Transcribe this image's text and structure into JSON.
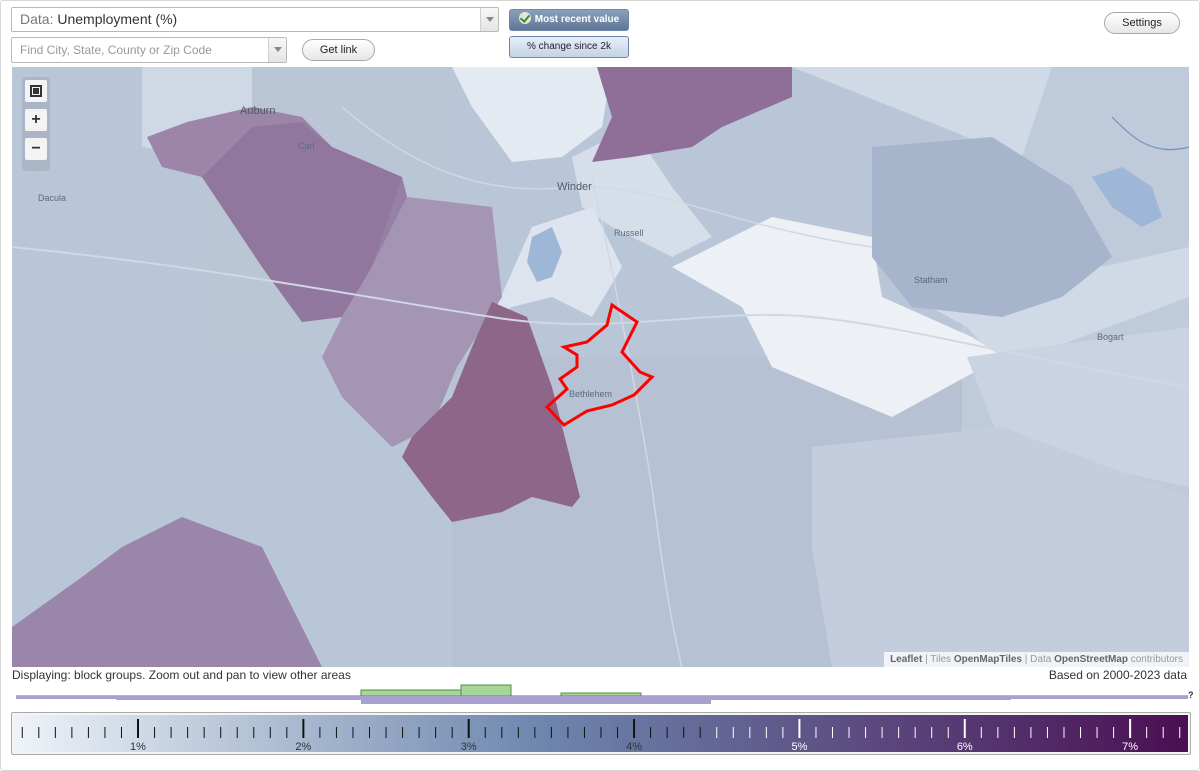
{
  "header": {
    "data_prefix": "Data:",
    "data_value": "Unemployment (%)",
    "search_placeholder": "Find City, State, County or Zip Code",
    "get_link_label": "Get link",
    "settings_label": "Settings",
    "toggle_recent_label": "Most recent value",
    "toggle_change_label": "% change since 2k"
  },
  "map": {
    "places": [
      {
        "name": "Auburn",
        "big": true
      },
      {
        "name": "Carl",
        "big": false
      },
      {
        "name": "Dacula",
        "big": false
      },
      {
        "name": "Winder",
        "big": true
      },
      {
        "name": "Russell",
        "big": false
      },
      {
        "name": "Statham",
        "big": false
      },
      {
        "name": "Bogart",
        "big": false
      },
      {
        "name": "Bethlehem",
        "big": false
      }
    ],
    "colors": {
      "selection_outline": "#ff0000",
      "region_base": "#b9c6d8",
      "region_purple": "#8a6b93",
      "region_magenta": "#9b6a8d",
      "region_light": "#dde4ee"
    },
    "attribution": {
      "leaflet": "Leaflet",
      "tiles_prefix": "Tiles",
      "tiles": "OpenMapTiles",
      "data_prefix": "Data",
      "data": "OpenStreetMap",
      "suffix": "contributors"
    },
    "zoom_icons": [
      "fullscreen-icon",
      "zoom-in-icon",
      "zoom-out-icon"
    ]
  },
  "footer": {
    "display_text": "Displaying: block groups. Zoom out and pan to view other areas",
    "based_text": "Based on 2000-2023 data",
    "help_mark": "?"
  },
  "legend": {
    "labels": [
      "1%",
      "2%",
      "3%",
      "4%",
      "5%",
      "6%",
      "7%"
    ],
    "min": 0.25,
    "max": 7.35,
    "color_start": "#eef3f8",
    "color_mid": "#6d86ad",
    "color_end": "#4a0f52"
  }
}
